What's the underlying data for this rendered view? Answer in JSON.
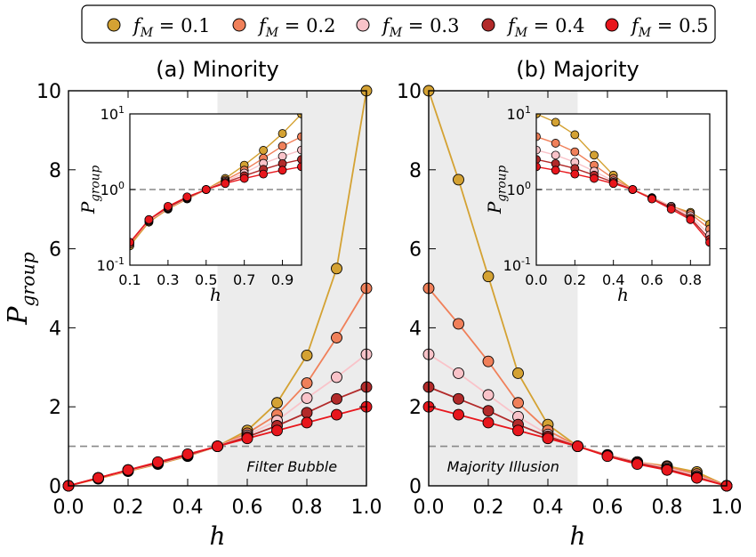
{
  "legend": {
    "entries": [
      {
        "label": "f_M = 0.1",
        "sub": "M",
        "value": "0.1",
        "color": "#d4a233"
      },
      {
        "label": "f_M = 0.2",
        "sub": "M",
        "value": "0.2",
        "color": "#f0805a"
      },
      {
        "label": "f_M = 0.3",
        "sub": "M",
        "value": "0.3",
        "color": "#f9c3c9"
      },
      {
        "label": "f_M = 0.4",
        "sub": "M",
        "value": "0.4",
        "color": "#b22a2a"
      },
      {
        "label": "f_M = 0.5",
        "sub": "M",
        "value": "0.5",
        "color": "#e8161c"
      }
    ]
  },
  "chart_data": [
    {
      "type": "line",
      "title": "(a) Minority",
      "xlabel": "h",
      "ylabel": "P_group",
      "xlim": [
        0.0,
        1.0
      ],
      "ylim": [
        0,
        10
      ],
      "xticks": [
        "0.0",
        "0.2",
        "0.4",
        "0.6",
        "0.8",
        "1.0"
      ],
      "yticks": [
        "0",
        "2",
        "4",
        "6",
        "8",
        "10"
      ],
      "reference_line_y": 1,
      "shaded_region": {
        "x": [
          0.5,
          1.0
        ],
        "label": "Filter Bubble"
      },
      "x": [
        0.0,
        0.1,
        0.2,
        0.3,
        0.4,
        0.5,
        0.6,
        0.7,
        0.8,
        0.9,
        1.0
      ],
      "series": [
        {
          "name": "f_M = 0.1",
          "values": [
            0.0,
            0.18,
            0.37,
            0.55,
            0.75,
            1.0,
            1.4,
            2.1,
            3.3,
            5.5,
            10.0
          ]
        },
        {
          "name": "f_M = 0.2",
          "values": [
            0.0,
            0.19,
            0.38,
            0.56,
            0.76,
            1.0,
            1.33,
            1.8,
            2.6,
            3.75,
            5.0
          ]
        },
        {
          "name": "f_M = 0.3",
          "values": [
            0.0,
            0.2,
            0.39,
            0.57,
            0.77,
            1.0,
            1.28,
            1.65,
            2.22,
            2.75,
            3.33
          ]
        },
        {
          "name": "f_M = 0.4",
          "values": [
            0.0,
            0.2,
            0.4,
            0.58,
            0.78,
            1.0,
            1.24,
            1.52,
            1.85,
            2.2,
            2.5
          ]
        },
        {
          "name": "f_M = 0.5",
          "values": [
            0.0,
            0.2,
            0.4,
            0.6,
            0.8,
            1.0,
            1.2,
            1.4,
            1.6,
            1.8,
            2.0
          ]
        }
      ],
      "inset": {
        "xlabel": "h",
        "ylabel": "P_group",
        "yscale": "log",
        "xlim": [
          0.1,
          1.0
        ],
        "ylim": [
          0.1,
          10
        ],
        "xticks": [
          "0.1",
          "0.3",
          "0.5",
          "0.7",
          "0.9"
        ],
        "yticks": [
          {
            "base": "10",
            "exp": "-1"
          },
          {
            "base": "10",
            "exp": "0"
          },
          {
            "base": "10",
            "exp": "1"
          }
        ],
        "reference_line_y": 1
      }
    },
    {
      "type": "line",
      "title": "(b) Majority",
      "xlabel": "h",
      "ylabel": "",
      "xlim": [
        0.0,
        1.0
      ],
      "ylim": [
        0,
        10
      ],
      "xticks": [
        "0.0",
        "0.2",
        "0.4",
        "0.6",
        "0.8",
        "1.0"
      ],
      "yticks": [
        "0",
        "2",
        "4",
        "6",
        "8",
        "10"
      ],
      "reference_line_y": 1,
      "shaded_region": {
        "x": [
          0.0,
          0.5
        ],
        "label": "Majority Illusion"
      },
      "x": [
        0.0,
        0.1,
        0.2,
        0.3,
        0.4,
        0.5,
        0.6,
        0.7,
        0.8,
        0.9,
        1.0
      ],
      "series": [
        {
          "name": "f_M = 0.1",
          "values": [
            10.0,
            7.75,
            5.3,
            2.85,
            1.55,
            1.0,
            0.78,
            0.6,
            0.5,
            0.35,
            0.0
          ]
        },
        {
          "name": "f_M = 0.2",
          "values": [
            5.0,
            4.1,
            3.15,
            2.1,
            1.4,
            1.0,
            0.78,
            0.6,
            0.48,
            0.3,
            0.0
          ]
        },
        {
          "name": "f_M = 0.3",
          "values": [
            3.33,
            2.85,
            2.3,
            1.75,
            1.3,
            1.0,
            0.77,
            0.6,
            0.45,
            0.25,
            0.0
          ]
        },
        {
          "name": "f_M = 0.4",
          "values": [
            2.5,
            2.2,
            1.9,
            1.55,
            1.25,
            1.0,
            0.76,
            0.58,
            0.42,
            0.22,
            0.0
          ]
        },
        {
          "name": "f_M = 0.5",
          "values": [
            2.0,
            1.8,
            1.6,
            1.4,
            1.2,
            1.0,
            0.75,
            0.55,
            0.4,
            0.2,
            0.0
          ]
        }
      ],
      "inset": {
        "xlabel": "h",
        "ylabel": "P_group",
        "yscale": "log",
        "xlim": [
          0.0,
          0.9
        ],
        "ylim": [
          0.1,
          10
        ],
        "xticks": [
          "0.0",
          "0.2",
          "0.4",
          "0.6",
          "0.8"
        ],
        "yticks": [
          {
            "base": "10",
            "exp": "-1"
          },
          {
            "base": "10",
            "exp": "0"
          },
          {
            "base": "10",
            "exp": "1"
          }
        ],
        "reference_line_y": 1
      }
    }
  ]
}
